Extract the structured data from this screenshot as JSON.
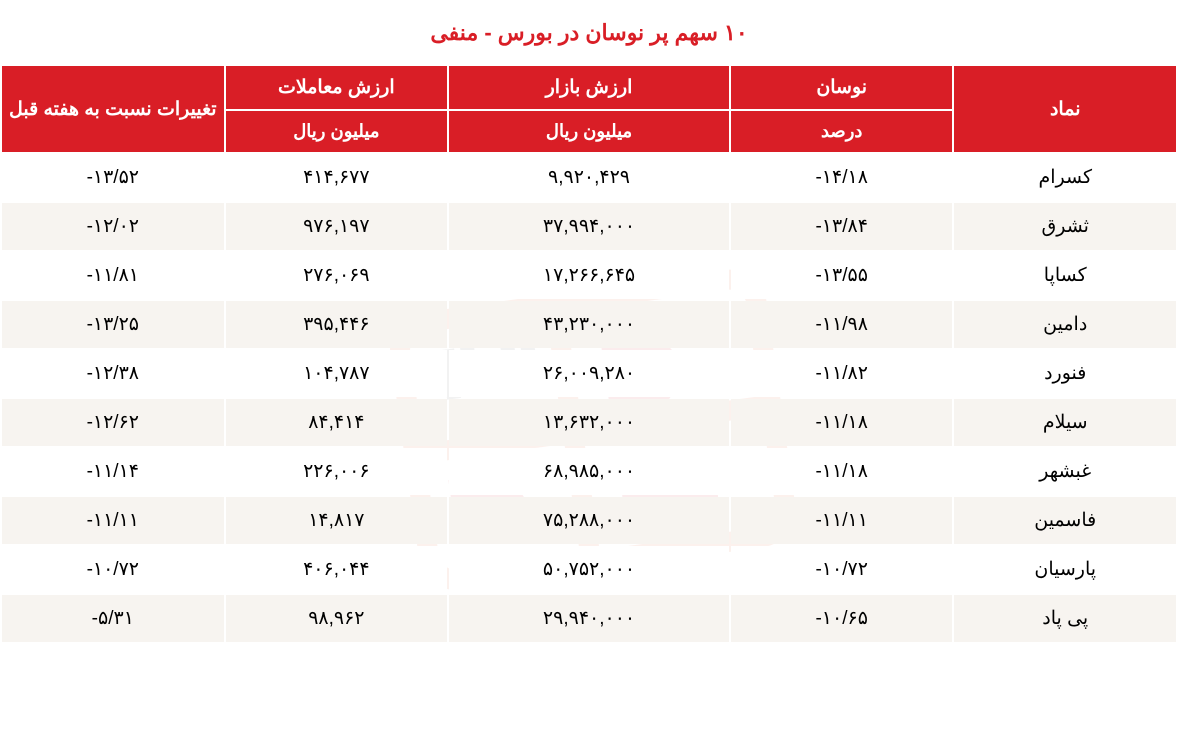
{
  "title": {
    "text": "۱۰ سهم پر نوسان در بورس - منفی",
    "color": "#d91e26",
    "fontsize": 22
  },
  "table": {
    "header_bg": "#d91e26",
    "header_color": "#ffffff",
    "header_fontsize": 19,
    "subheader_fontsize": 18,
    "cell_fontsize": 19,
    "row_bg_odd": "#ffffff",
    "row_bg_even": "#f7f4f0",
    "border_color": "#ffffff",
    "columns": {
      "symbol": {
        "label": "نماد"
      },
      "volatility": {
        "label": "نوسان",
        "sublabel": "درصد"
      },
      "market_value": {
        "label": "ارزش بازار",
        "sublabel": "میلیون ریال"
      },
      "trade_value": {
        "label": "ارزش معاملات",
        "sublabel": "میلیون ریال"
      },
      "change": {
        "label": "تغییرات نسبت به هفته قبل"
      }
    },
    "rows": [
      {
        "symbol": "کسرام",
        "volatility": "-۱۴/۱۸",
        "market_value": "۹,۹۲۰,۴۲۹",
        "trade_value": "۴۱۴,۶۷۷",
        "change": "-۱۳/۵۲"
      },
      {
        "symbol": "ثشرق",
        "volatility": "-۱۳/۸۴",
        "market_value": "۳۷,۹۹۴,۰۰۰",
        "trade_value": "۹۷۶,۱۹۷",
        "change": "-۱۲/۰۲"
      },
      {
        "symbol": "کساپا",
        "volatility": "-۱۳/۵۵",
        "market_value": "۱۷,۲۶۶,۶۴۵",
        "trade_value": "۲۷۶,۰۶۹",
        "change": "-۱۱/۸۱"
      },
      {
        "symbol": "دامین",
        "volatility": "-۱۱/۹۸",
        "market_value": "۴۳,۲۳۰,۰۰۰",
        "trade_value": "۳۹۵,۴۴۶",
        "change": "-۱۳/۲۵"
      },
      {
        "symbol": "فنورد",
        "volatility": "-۱۱/۸۲",
        "market_value": "۲۶,۰۰۹,۲۸۰",
        "trade_value": "۱۰۴,۷۸۷",
        "change": "-۱۲/۳۸"
      },
      {
        "symbol": "سیلام",
        "volatility": "-۱۱/۱۸",
        "market_value": "۱۳,۶۳۲,۰۰۰",
        "trade_value": "۸۴,۴۱۴",
        "change": "-۱۲/۶۲"
      },
      {
        "symbol": "غبشهر",
        "volatility": "-۱۱/۱۸",
        "market_value": "۶۸,۹۸۵,۰۰۰",
        "trade_value": "۲۲۶,۰۰۶",
        "change": "-۱۱/۱۴"
      },
      {
        "symbol": "فاسمین",
        "volatility": "-۱۱/۱۱",
        "market_value": "۷۵,۲۸۸,۰۰۰",
        "trade_value": "۱۴,۸۱۷",
        "change": "-۱۱/۱۱"
      },
      {
        "symbol": "پارسیان",
        "volatility": "-۱۰/۷۲",
        "market_value": "۵۰,۷۵۲,۰۰۰",
        "trade_value": "۴۰۶,۰۴۴",
        "change": "-۱۰/۷۲"
      },
      {
        "symbol": "پی پاد",
        "volatility": "-۱۰/۶۵",
        "market_value": "۲۹,۹۴۰,۰۰۰",
        "trade_value": "۹۸,۹۶۲",
        "change": "-۵/۳۱"
      }
    ]
  },
  "watermark": {
    "colors": [
      "#e45a2a",
      "#d91e26"
    ]
  }
}
